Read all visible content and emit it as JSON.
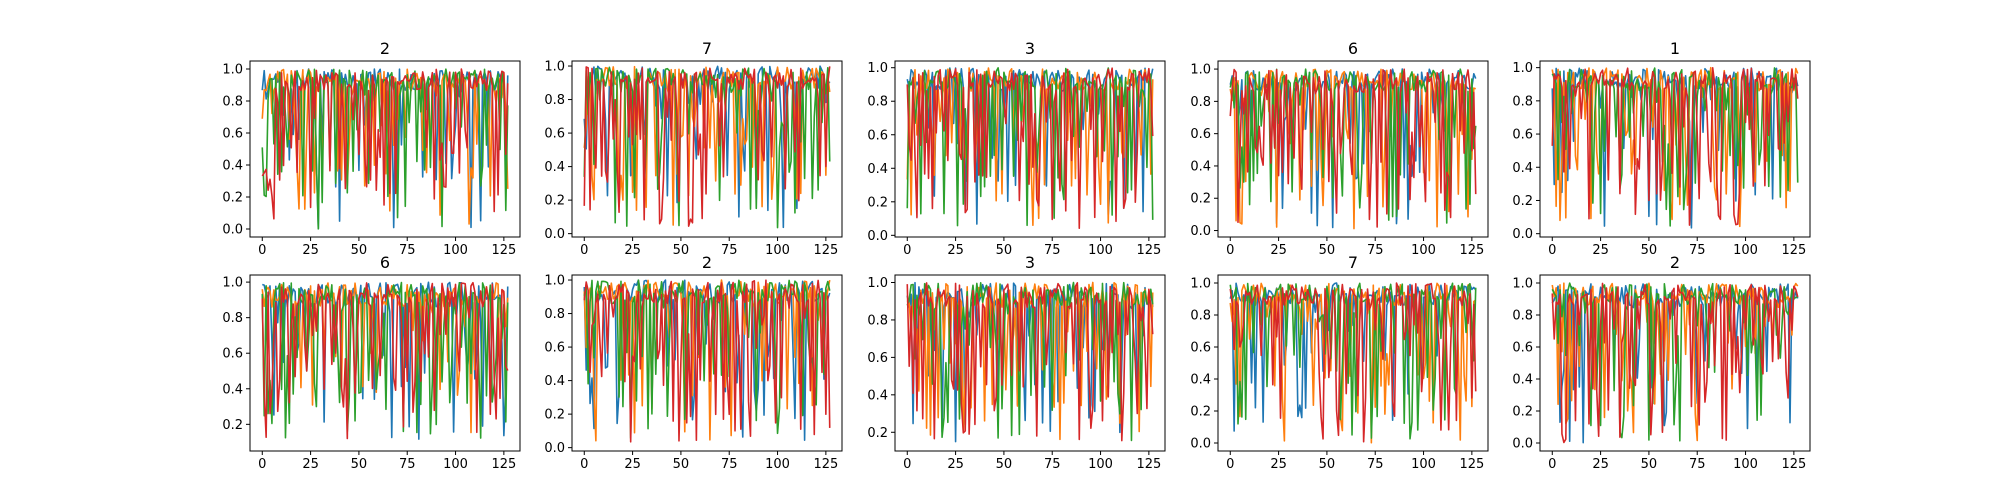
{
  "chart_data": [
    {
      "type": "line",
      "title": "2",
      "x": [
        0,
        127
      ],
      "xticks": [
        0,
        25,
        50,
        75,
        100,
        125
      ],
      "xticklabels": [
        "0",
        "25",
        "50",
        "75",
        "100",
        "125"
      ],
      "xlim": [
        -6.35,
        133.35
      ],
      "ylim": [
        -0.05,
        1.05
      ],
      "yticks": [
        0.0,
        0.2,
        0.4,
        0.6,
        0.8,
        1.0
      ],
      "yticklabels": [
        "0.0",
        "0.2",
        "0.4",
        "0.6",
        "0.8",
        "1.0"
      ],
      "series_count": 4
    },
    {
      "type": "line",
      "title": "7",
      "x": [
        0,
        127
      ],
      "xticks": [
        0,
        25,
        50,
        75,
        100,
        125
      ],
      "xticklabels": [
        "0",
        "25",
        "50",
        "75",
        "100",
        "125"
      ],
      "xlim": [
        -6.35,
        133.35
      ],
      "ylim": [
        -0.02,
        1.03
      ],
      "yticks": [
        0.0,
        0.2,
        0.4,
        0.6,
        0.8,
        1.0
      ],
      "yticklabels": [
        "0.0",
        "0.2",
        "0.4",
        "0.6",
        "0.8",
        "1.0"
      ],
      "series_count": 4
    },
    {
      "type": "line",
      "title": "3",
      "x": [
        0,
        127
      ],
      "xticks": [
        0,
        25,
        50,
        75,
        100,
        125
      ],
      "xticklabels": [
        "0",
        "25",
        "50",
        "75",
        "100",
        "125"
      ],
      "xlim": [
        -6.35,
        133.35
      ],
      "ylim": [
        -0.01,
        1.04
      ],
      "yticks": [
        0.0,
        0.2,
        0.4,
        0.6,
        0.8,
        1.0
      ],
      "yticklabels": [
        "0.0",
        "0.2",
        "0.4",
        "0.6",
        "0.8",
        "1.0"
      ],
      "series_count": 4
    },
    {
      "type": "line",
      "title": "6",
      "x": [
        0,
        127
      ],
      "xticks": [
        0,
        25,
        50,
        75,
        100,
        125
      ],
      "xticklabels": [
        "0",
        "25",
        "50",
        "75",
        "100",
        "125"
      ],
      "xlim": [
        -6.35,
        133.35
      ],
      "ylim": [
        -0.04,
        1.05
      ],
      "yticks": [
        0.0,
        0.2,
        0.4,
        0.6,
        0.8,
        1.0
      ],
      "yticklabels": [
        "0.0",
        "0.2",
        "0.4",
        "0.6",
        "0.8",
        "1.0"
      ],
      "series_count": 4
    },
    {
      "type": "line",
      "title": "1",
      "x": [
        0,
        127
      ],
      "xticks": [
        0,
        25,
        50,
        75,
        100,
        125
      ],
      "xticklabels": [
        "0",
        "25",
        "50",
        "75",
        "100",
        "125"
      ],
      "xlim": [
        -6.35,
        133.35
      ],
      "ylim": [
        -0.02,
        1.04
      ],
      "yticks": [
        0.0,
        0.2,
        0.4,
        0.6,
        0.8,
        1.0
      ],
      "yticklabels": [
        "0.0",
        "0.2",
        "0.4",
        "0.6",
        "0.8",
        "1.0"
      ],
      "series_count": 4
    },
    {
      "type": "line",
      "title": "6",
      "x": [
        0,
        127
      ],
      "xticks": [
        0,
        25,
        50,
        75,
        100,
        125
      ],
      "xticklabels": [
        "0",
        "25",
        "50",
        "75",
        "100",
        "125"
      ],
      "xlim": [
        -6.35,
        133.35
      ],
      "ylim": [
        0.05,
        1.04
      ],
      "yticks": [
        0.2,
        0.4,
        0.6,
        0.8,
        1.0
      ],
      "yticklabels": [
        "0.2",
        "0.4",
        "0.6",
        "0.8",
        "1.0"
      ],
      "series_count": 4
    },
    {
      "type": "line",
      "title": "2",
      "x": [
        0,
        127
      ],
      "xticks": [
        0,
        25,
        50,
        75,
        100,
        125
      ],
      "xticklabels": [
        "0",
        "25",
        "50",
        "75",
        "100",
        "125"
      ],
      "xlim": [
        -6.35,
        133.35
      ],
      "ylim": [
        -0.02,
        1.03
      ],
      "yticks": [
        0.0,
        0.2,
        0.4,
        0.6,
        0.8,
        1.0
      ],
      "yticklabels": [
        "0.0",
        "0.2",
        "0.4",
        "0.6",
        "0.8",
        "1.0"
      ],
      "series_count": 4
    },
    {
      "type": "line",
      "title": "3",
      "x": [
        0,
        127
      ],
      "xticks": [
        0,
        25,
        50,
        75,
        100,
        125
      ],
      "xticklabels": [
        "0",
        "25",
        "50",
        "75",
        "100",
        "125"
      ],
      "xlim": [
        -6.35,
        133.35
      ],
      "ylim": [
        0.1,
        1.04
      ],
      "yticks": [
        0.2,
        0.4,
        0.6,
        0.8,
        1.0
      ],
      "yticklabels": [
        "0.2",
        "0.4",
        "0.6",
        "0.8",
        "1.0"
      ],
      "series_count": 4
    },
    {
      "type": "line",
      "title": "7",
      "x": [
        0,
        127
      ],
      "xticks": [
        0,
        25,
        50,
        75,
        100,
        125
      ],
      "xticklabels": [
        "0",
        "25",
        "50",
        "75",
        "100",
        "125"
      ],
      "xlim": [
        -6.35,
        133.35
      ],
      "ylim": [
        -0.05,
        1.05
      ],
      "yticks": [
        0.0,
        0.2,
        0.4,
        0.6,
        0.8,
        1.0
      ],
      "yticklabels": [
        "0.0",
        "0.2",
        "0.4",
        "0.6",
        "0.8",
        "1.0"
      ],
      "series_count": 4
    },
    {
      "type": "line",
      "title": "2",
      "x": [
        0,
        127
      ],
      "xticks": [
        0,
        25,
        50,
        75,
        100,
        125
      ],
      "xticklabels": [
        "0",
        "25",
        "50",
        "75",
        "100",
        "125"
      ],
      "xlim": [
        -6.35,
        133.35
      ],
      "ylim": [
        -0.05,
        1.05
      ],
      "yticks": [
        0.0,
        0.2,
        0.4,
        0.6,
        0.8,
        1.0
      ],
      "yticklabels": [
        "0.0",
        "0.2",
        "0.4",
        "0.6",
        "0.8",
        "1.0"
      ],
      "series_count": 4
    }
  ],
  "series_colors": [
    "#1f77b4",
    "#ff7f0e",
    "#2ca02c",
    "#d62728"
  ]
}
